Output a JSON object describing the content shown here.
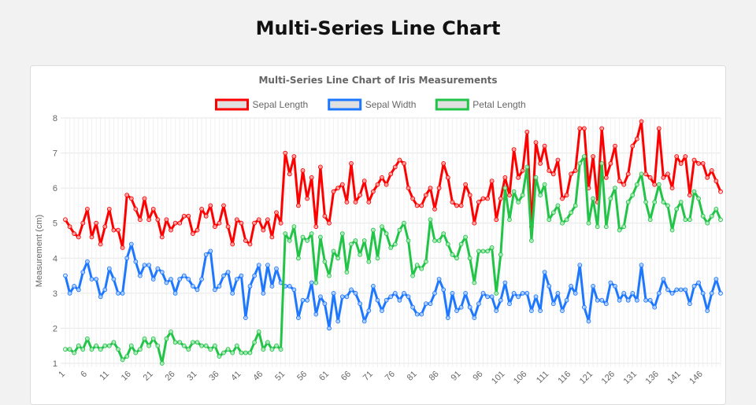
{
  "page": {
    "title": "Multi-Series Line Chart"
  },
  "chart_data": {
    "type": "line",
    "title": "Multi-Series Line Chart of Iris Measurements",
    "xlabel": "",
    "ylabel": "Measurement (cm)",
    "ylim": [
      1,
      8
    ],
    "yticks": [
      1,
      2,
      3,
      4,
      5,
      6,
      7,
      8
    ],
    "xticks": [
      1,
      6,
      11,
      16,
      21,
      26,
      31,
      36,
      41,
      46,
      51,
      56,
      61,
      66,
      71,
      76,
      81,
      86,
      91,
      96,
      101,
      106,
      111,
      116,
      121,
      126,
      131,
      136,
      141,
      146
    ],
    "grid": true,
    "legend": "top",
    "x": [
      1,
      2,
      3,
      4,
      5,
      6,
      7,
      8,
      9,
      10,
      11,
      12,
      13,
      14,
      15,
      16,
      17,
      18,
      19,
      20,
      21,
      22,
      23,
      24,
      25,
      26,
      27,
      28,
      29,
      30,
      31,
      32,
      33,
      34,
      35,
      36,
      37,
      38,
      39,
      40,
      41,
      42,
      43,
      44,
      45,
      46,
      47,
      48,
      49,
      50,
      51,
      52,
      53,
      54,
      55,
      56,
      57,
      58,
      59,
      60,
      61,
      62,
      63,
      64,
      65,
      66,
      67,
      68,
      69,
      70,
      71,
      72,
      73,
      74,
      75,
      76,
      77,
      78,
      79,
      80,
      81,
      82,
      83,
      84,
      85,
      86,
      87,
      88,
      89,
      90,
      91,
      92,
      93,
      94,
      95,
      96,
      97,
      98,
      99,
      100,
      101,
      102,
      103,
      104,
      105,
      106,
      107,
      108,
      109,
      110,
      111,
      112,
      113,
      114,
      115,
      116,
      117,
      118,
      119,
      120,
      121,
      122,
      123,
      124,
      125,
      126,
      127,
      128,
      129,
      130,
      131,
      132,
      133,
      134,
      135,
      136,
      137,
      138,
      139,
      140,
      141,
      142,
      143,
      144,
      145,
      146,
      147,
      148,
      149,
      150
    ],
    "series": [
      {
        "name": "Sepal Length",
        "color": "#ff0000",
        "values": [
          5.1,
          4.9,
          4.7,
          4.6,
          5.0,
          5.4,
          4.6,
          5.0,
          4.4,
          4.9,
          5.4,
          4.8,
          4.8,
          4.3,
          5.8,
          5.7,
          5.4,
          5.1,
          5.7,
          5.1,
          5.4,
          5.1,
          4.6,
          5.1,
          4.8,
          5.0,
          5.0,
          5.2,
          5.2,
          4.7,
          4.8,
          5.4,
          5.2,
          5.5,
          4.9,
          5.0,
          5.5,
          4.9,
          4.4,
          5.1,
          5.0,
          4.5,
          4.4,
          5.0,
          5.1,
          4.8,
          5.1,
          4.6,
          5.3,
          5.0,
          7.0,
          6.4,
          6.9,
          5.5,
          6.5,
          5.7,
          6.3,
          4.9,
          6.6,
          5.2,
          5.0,
          5.9,
          6.0,
          6.1,
          5.6,
          6.7,
          5.6,
          5.8,
          6.2,
          5.6,
          5.9,
          6.1,
          6.3,
          6.1,
          6.4,
          6.6,
          6.8,
          6.7,
          6.0,
          5.7,
          5.5,
          5.5,
          5.8,
          6.0,
          5.4,
          6.0,
          6.7,
          6.3,
          5.6,
          5.5,
          5.5,
          6.1,
          5.8,
          5.0,
          5.6,
          5.7,
          5.7,
          6.2,
          5.1,
          5.7,
          6.3,
          5.8,
          7.1,
          6.3,
          6.5,
          7.6,
          4.9,
          7.3,
          6.7,
          7.2,
          6.5,
          6.4,
          6.8,
          5.7,
          5.8,
          6.4,
          6.5,
          7.7,
          7.7,
          6.0,
          6.9,
          5.6,
          7.7,
          6.3,
          6.7,
          7.2,
          6.2,
          6.1,
          6.4,
          7.2,
          7.4,
          7.9,
          6.4,
          6.3,
          6.1,
          7.7,
          6.3,
          6.4,
          6.0,
          6.9,
          6.7,
          6.9,
          5.8,
          6.8,
          6.7,
          6.7,
          6.3,
          6.5,
          6.2,
          5.9
        ]
      },
      {
        "name": "Sepal Width",
        "color": "#1e78ff",
        "values": [
          3.5,
          3.0,
          3.2,
          3.1,
          3.6,
          3.9,
          3.4,
          3.4,
          2.9,
          3.1,
          3.7,
          3.4,
          3.0,
          3.0,
          4.0,
          4.4,
          3.9,
          3.5,
          3.8,
          3.8,
          3.4,
          3.7,
          3.6,
          3.3,
          3.4,
          3.0,
          3.4,
          3.5,
          3.4,
          3.2,
          3.1,
          3.4,
          4.1,
          4.2,
          3.1,
          3.2,
          3.5,
          3.6,
          3.0,
          3.4,
          3.5,
          2.3,
          3.2,
          3.5,
          3.8,
          3.0,
          3.8,
          3.2,
          3.7,
          3.3,
          3.2,
          3.2,
          3.1,
          2.3,
          2.8,
          2.8,
          3.3,
          2.4,
          2.9,
          2.7,
          2.0,
          3.0,
          2.2,
          2.9,
          2.9,
          3.1,
          3.0,
          2.7,
          2.2,
          2.5,
          3.2,
          2.8,
          2.5,
          2.8,
          2.9,
          3.0,
          2.8,
          3.0,
          2.9,
          2.6,
          2.4,
          2.4,
          2.7,
          2.7,
          3.0,
          3.4,
          3.1,
          2.3,
          3.0,
          2.5,
          2.6,
          3.0,
          2.6,
          2.3,
          2.7,
          3.0,
          2.9,
          2.9,
          2.5,
          2.8,
          3.3,
          2.7,
          3.0,
          2.9,
          3.0,
          3.0,
          2.5,
          2.9,
          2.5,
          3.6,
          3.2,
          2.7,
          3.0,
          2.5,
          2.8,
          3.2,
          3.0,
          3.8,
          2.6,
          2.2,
          3.2,
          2.8,
          2.8,
          2.7,
          3.3,
          3.2,
          2.8,
          3.0,
          2.8,
          3.0,
          2.8,
          3.8,
          2.8,
          2.8,
          2.6,
          3.0,
          3.4,
          3.1,
          3.0,
          3.1,
          3.1,
          3.1,
          2.7,
          3.2,
          3.3,
          3.0,
          2.5,
          3.0,
          3.4,
          3.0
        ]
      },
      {
        "name": "Petal Length",
        "color": "#22c448",
        "values": [
          1.4,
          1.4,
          1.3,
          1.5,
          1.4,
          1.7,
          1.4,
          1.5,
          1.4,
          1.5,
          1.5,
          1.6,
          1.4,
          1.1,
          1.2,
          1.5,
          1.3,
          1.4,
          1.7,
          1.5,
          1.7,
          1.5,
          1.0,
          1.7,
          1.9,
          1.6,
          1.6,
          1.5,
          1.4,
          1.6,
          1.6,
          1.5,
          1.5,
          1.4,
          1.5,
          1.2,
          1.3,
          1.4,
          1.3,
          1.5,
          1.3,
          1.3,
          1.3,
          1.6,
          1.9,
          1.4,
          1.6,
          1.4,
          1.5,
          1.4,
          4.7,
          4.5,
          4.9,
          4.0,
          4.6,
          4.5,
          4.7,
          3.3,
          4.6,
          3.9,
          3.5,
          4.2,
          4.0,
          4.7,
          3.6,
          4.4,
          4.5,
          4.1,
          4.5,
          3.9,
          4.8,
          4.0,
          4.9,
          4.7,
          4.3,
          4.4,
          4.8,
          5.0,
          4.5,
          3.5,
          3.8,
          3.7,
          3.9,
          5.1,
          4.5,
          4.5,
          4.7,
          4.4,
          4.1,
          4.0,
          4.4,
          4.6,
          4.0,
          3.3,
          4.2,
          4.2,
          4.2,
          4.3,
          3.0,
          4.1,
          6.0,
          5.1,
          5.9,
          5.6,
          5.8,
          6.6,
          4.5,
          6.3,
          5.8,
          6.1,
          5.1,
          5.3,
          5.5,
          5.0,
          5.1,
          5.3,
          5.5,
          6.7,
          6.9,
          5.0,
          5.7,
          4.9,
          6.7,
          4.9,
          5.7,
          6.0,
          4.8,
          4.9,
          5.6,
          5.8,
          6.1,
          6.4,
          5.6,
          5.1,
          5.6,
          6.1,
          5.6,
          5.5,
          4.8,
          5.4,
          5.6,
          5.1,
          5.1,
          5.9,
          5.7,
          5.2,
          5.0,
          5.2,
          5.4,
          5.1
        ]
      }
    ]
  }
}
